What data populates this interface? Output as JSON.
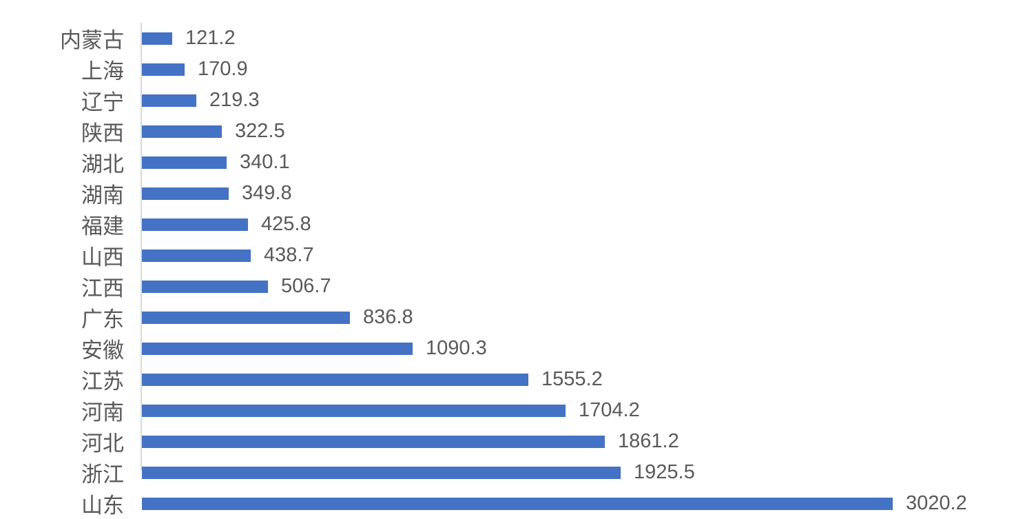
{
  "chart_data": {
    "type": "bar",
    "orientation": "horizontal",
    "title": "",
    "xlabel": "",
    "ylabel": "",
    "grid": false,
    "legend": false,
    "sorted": "ascending-down",
    "categories": [
      "内蒙古",
      "上海",
      "辽宁",
      "陕西",
      "湖北",
      "湖南",
      "福建",
      "山西",
      "江西",
      "广东",
      "安徽",
      "江苏",
      "河南",
      "河北",
      "浙江",
      "山东"
    ],
    "values": [
      121.2,
      170.9,
      219.3,
      322.5,
      340.1,
      349.8,
      425.8,
      438.7,
      506.7,
      836.8,
      1090.3,
      1555.2,
      1704.2,
      1861.2,
      1925.5,
      3020.2
    ],
    "data_labels": [
      "121.2",
      "170.9",
      "219.3",
      "322.5",
      "340.1",
      "349.8",
      "425.8",
      "438.7",
      "506.7",
      "836.8",
      "1090.3",
      "1555.2",
      "1704.2",
      "1861.2",
      "1925.5",
      "3020.2"
    ],
    "xlim": [
      0,
      3020.2
    ],
    "bar_color": "#4472C4",
    "label_color": "#595959",
    "axis_color": "#D9D9D9"
  }
}
